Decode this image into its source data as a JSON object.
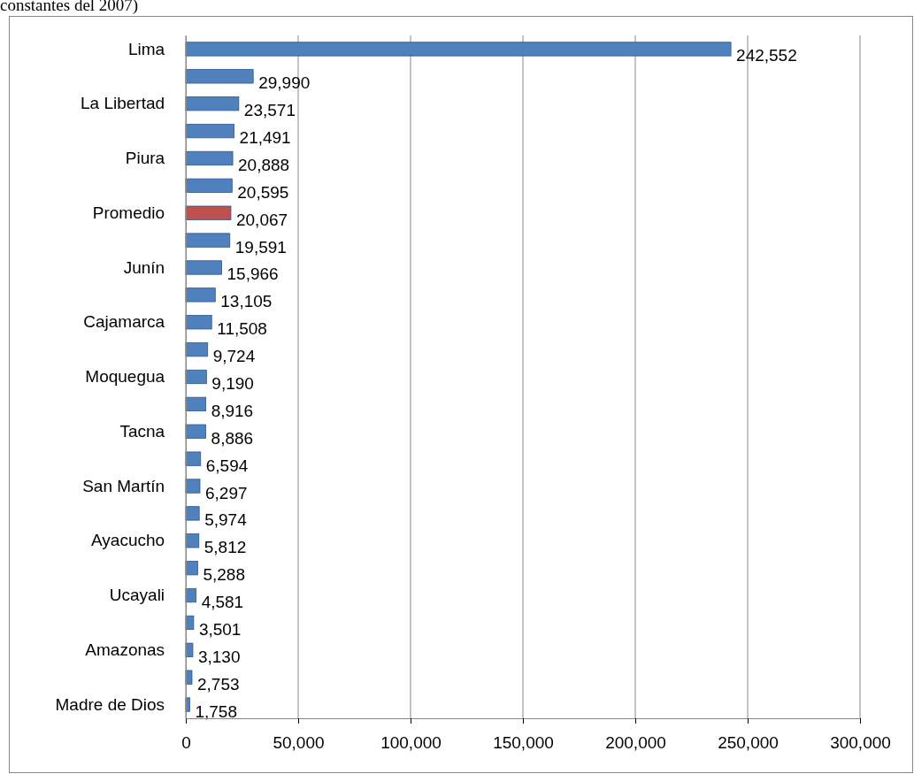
{
  "chart_data": {
    "type": "bar",
    "orientation": "horizontal",
    "title": "constantes del 2007)",
    "categories": [
      "Lima",
      null,
      "La Libertad",
      null,
      "Piura",
      null,
      "Promedio",
      null,
      "Junín",
      null,
      "Cajamarca",
      null,
      "Moquegua",
      null,
      "Tacna",
      null,
      "San Martín",
      null,
      "Ayacucho",
      null,
      "Ucayali",
      null,
      "Amazonas",
      null,
      "Madre de Dios"
    ],
    "values": [
      242552,
      29990,
      23571,
      21491,
      20888,
      20595,
      20067,
      19591,
      15966,
      13105,
      11508,
      9724,
      9190,
      8916,
      8886,
      6594,
      6297,
      5974,
      5812,
      5288,
      4581,
      3501,
      3130,
      2753,
      1758
    ],
    "colors": [
      "#4f81bd",
      "#4f81bd",
      "#4f81bd",
      "#4f81bd",
      "#4f81bd",
      "#4f81bd",
      "#c0504d",
      "#4f81bd",
      "#4f81bd",
      "#4f81bd",
      "#4f81bd",
      "#4f81bd",
      "#4f81bd",
      "#4f81bd",
      "#4f81bd",
      "#4f81bd",
      "#4f81bd",
      "#4f81bd",
      "#4f81bd",
      "#4f81bd",
      "#4f81bd",
      "#4f81bd",
      "#4f81bd",
      "#4f81bd",
      "#4f81bd"
    ],
    "xlim": [
      0,
      300000
    ],
    "xticks": [
      {
        "value": 0,
        "label": "0"
      },
      {
        "value": 50000,
        "label": "50,000"
      },
      {
        "value": 100000,
        "label": "100,000"
      },
      {
        "value": 150000,
        "label": "150,000"
      },
      {
        "value": 200000,
        "label": "200,000"
      },
      {
        "value": 250000,
        "label": "250,000"
      },
      {
        "value": 300000,
        "label": "300,000"
      }
    ],
    "value_labels": [
      "242,552",
      "29,990",
      "23,571",
      "21,491",
      "20,888",
      "20,595",
      "20,067",
      "19,591",
      "15,966",
      "13,105",
      "11,508",
      "9,724",
      "9,190",
      "8,916",
      "8,886",
      "6,594",
      "6,297",
      "5,974",
      "5,812",
      "5,288",
      "4,581",
      "3,501",
      "3,130",
      "2,753",
      "1,758"
    ],
    "grid": "x"
  }
}
